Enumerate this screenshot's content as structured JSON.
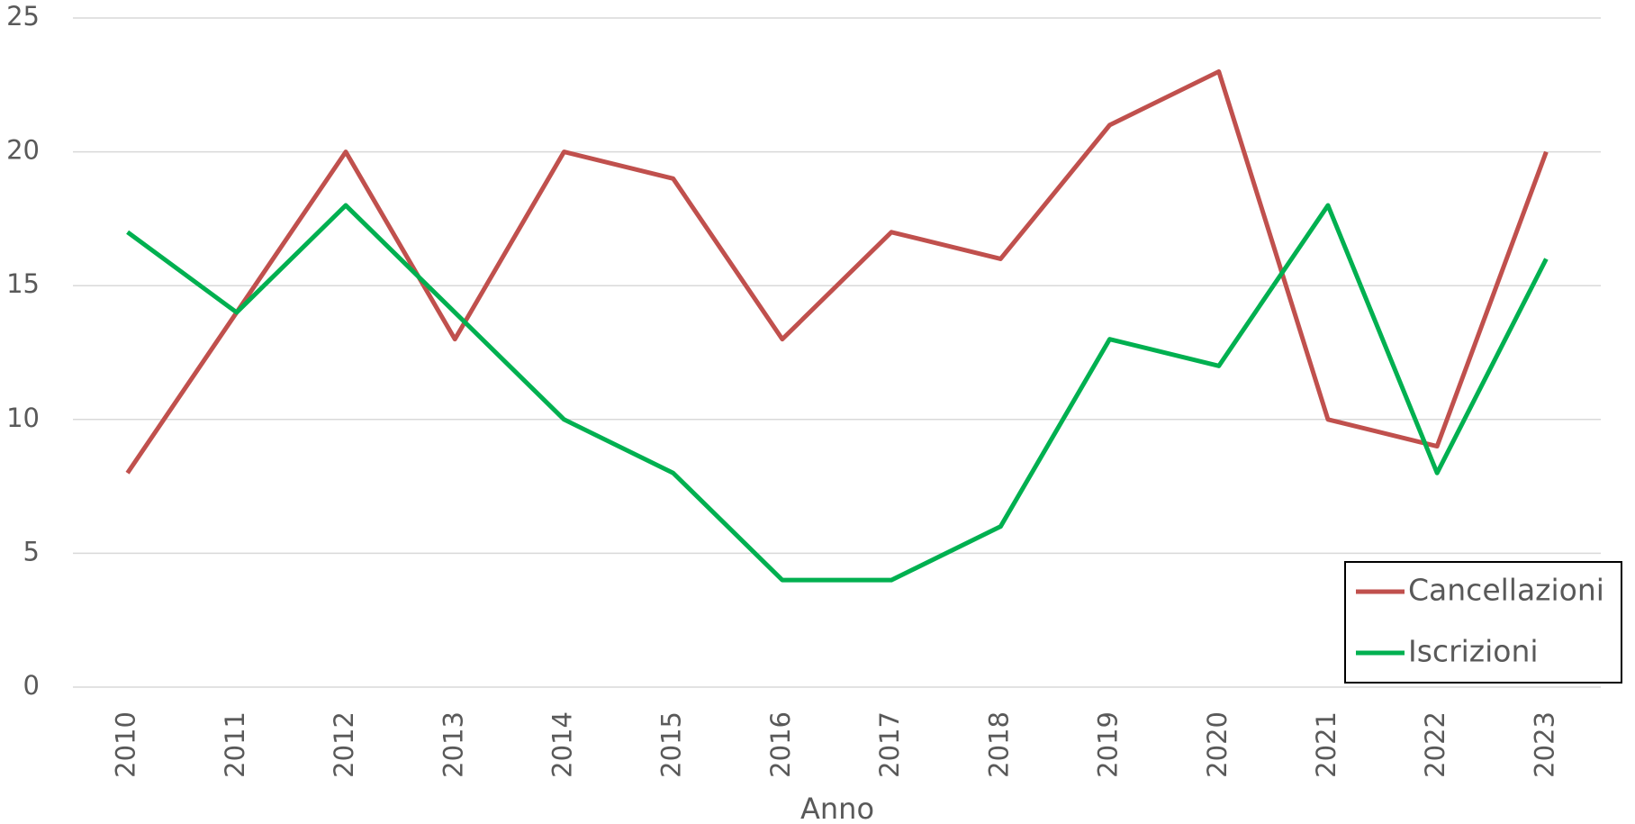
{
  "chart_data": {
    "type": "line",
    "x_label": "Anno",
    "categories": [
      "2010",
      "2011",
      "2012",
      "2013",
      "2014",
      "2015",
      "2016",
      "2017",
      "2018",
      "2019",
      "2020",
      "2021",
      "2022",
      "2023"
    ],
    "series": [
      {
        "name": "Cancellazioni",
        "color": "#c0504d",
        "values": [
          8,
          14,
          20,
          13,
          20,
          19,
          13,
          17,
          16,
          21,
          23,
          10,
          9,
          20
        ]
      },
      {
        "name": "Iscrizioni",
        "color": "#00b050",
        "values": [
          17,
          14,
          18,
          14,
          10,
          8,
          4,
          4,
          6,
          13,
          12,
          18,
          8,
          16
        ]
      }
    ],
    "ylim": [
      0,
      25
    ],
    "yticks": [
      0,
      5,
      10,
      15,
      20,
      25
    ],
    "grid": true,
    "legend": "lower right"
  }
}
